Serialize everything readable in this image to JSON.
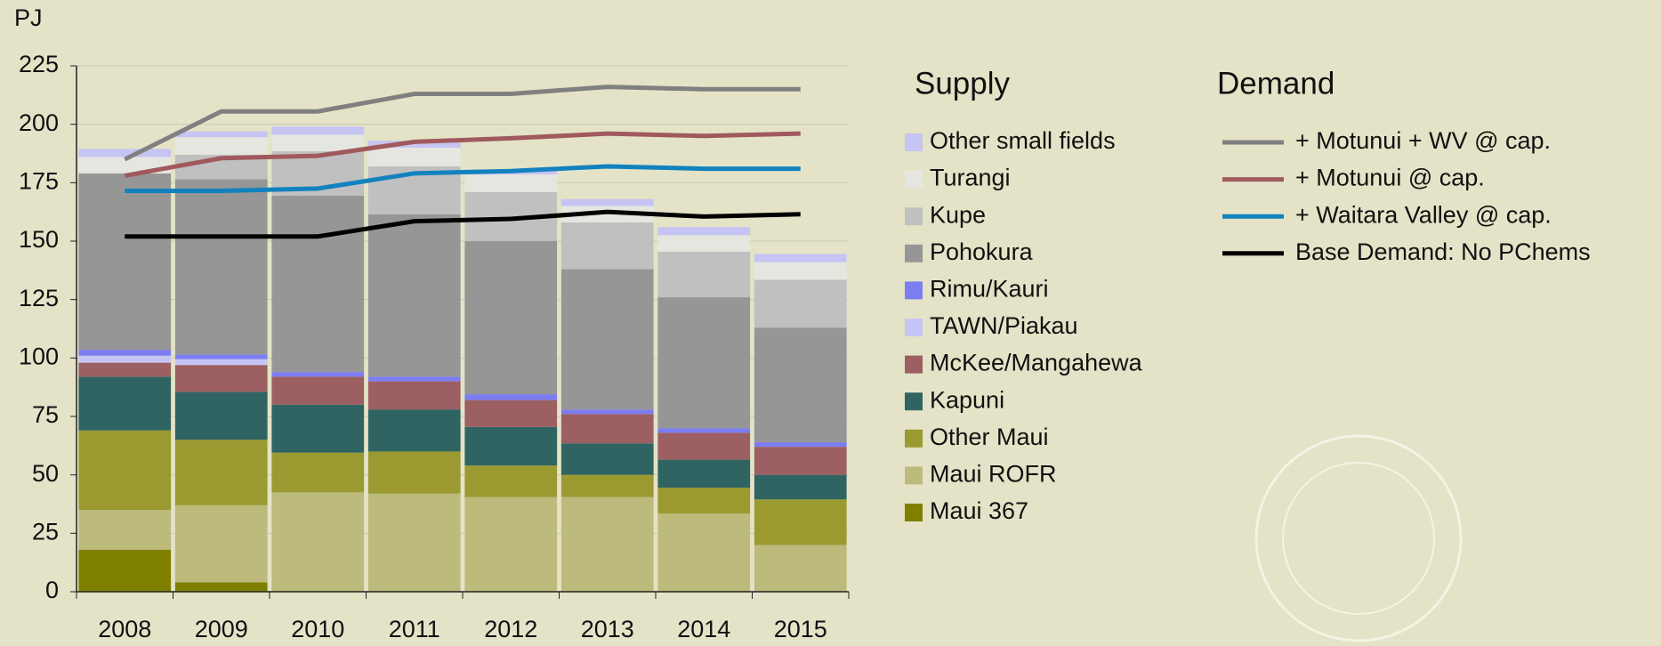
{
  "chart_data": {
    "type": "bar",
    "stacked": true,
    "y_label": "PJ",
    "categories": [
      "2008",
      "2009",
      "2010",
      "2011",
      "2012",
      "2013",
      "2014",
      "2015"
    ],
    "ylim": [
      0,
      225
    ],
    "yticks": [
      0,
      25,
      50,
      75,
      100,
      125,
      150,
      175,
      200,
      225
    ],
    "grid": true,
    "supply_title": "Supply",
    "demand_title": "Demand",
    "series": [
      {
        "name": "Maui 367",
        "color": "#808000",
        "values": [
          18,
          4,
          0,
          0,
          0,
          0,
          0,
          0
        ]
      },
      {
        "name": "Maui ROFR",
        "color": "#bcbb7c",
        "values": [
          17,
          33,
          42.5,
          42,
          40.5,
          40.5,
          33.5,
          20
        ]
      },
      {
        "name": "Other Maui",
        "color": "#9a9a30",
        "values": [
          34,
          28,
          17,
          18,
          13.5,
          9.5,
          11,
          19.5
        ]
      },
      {
        "name": "Kapuni",
        "color": "#2f6463",
        "values": [
          23,
          20.5,
          20.5,
          18,
          16.5,
          13.5,
          12,
          10.5
        ]
      },
      {
        "name": "McKee/Mangahewa",
        "color": "#9c5f62",
        "values": [
          6,
          11.5,
          12,
          12,
          11.5,
          12.5,
          11.5,
          12
        ]
      },
      {
        "name": "TAWN/Piakau",
        "color": "#c7c5f5",
        "values": [
          3,
          2.5,
          0,
          0,
          0,
          0,
          0,
          0
        ]
      },
      {
        "name": "Rimu/Kauri",
        "color": "#7d7df2",
        "values": [
          2.5,
          2,
          2,
          2,
          2.5,
          2,
          2,
          2
        ]
      },
      {
        "name": "Pohokura",
        "color": "#969696",
        "values": [
          75.5,
          75,
          75.5,
          69.5,
          65.5,
          60,
          56,
          49
        ]
      },
      {
        "name": "Kupe",
        "color": "#c0c0c0",
        "values": [
          0,
          10.5,
          19,
          20.5,
          21,
          20,
          19.5,
          20.5
        ]
      },
      {
        "name": "Turangi",
        "color": "#e6e6e1",
        "values": [
          7,
          7.5,
          7,
          8,
          7.5,
          7,
          7,
          7.5
        ]
      },
      {
        "name": "Other small fields",
        "color": "#c6c4f2",
        "values": [
          3.5,
          2.5,
          3.5,
          3,
          2,
          3,
          3.5,
          3.5
        ]
      }
    ],
    "line_series": [
      {
        "name": "+ Motunui + WV @ cap.",
        "color": "#808080",
        "values": [
          185,
          205.5,
          205.5,
          213,
          213,
          216,
          215,
          215
        ]
      },
      {
        "name": "+ Motunui @ cap.",
        "color": "#a0595c",
        "values": [
          178,
          185.5,
          186.5,
          192.5,
          194,
          196,
          195,
          196
        ]
      },
      {
        "name": "+ Waitara Valley @ cap.",
        "color": "#1282be",
        "values": [
          171.5,
          171.5,
          172.5,
          179,
          180,
          182,
          181,
          181
        ]
      },
      {
        "name": "Base Demand: No PChems",
        "color": "#000000",
        "values": [
          152,
          152,
          152,
          158.5,
          159.5,
          162.5,
          160.5,
          161.5
        ]
      }
    ]
  }
}
